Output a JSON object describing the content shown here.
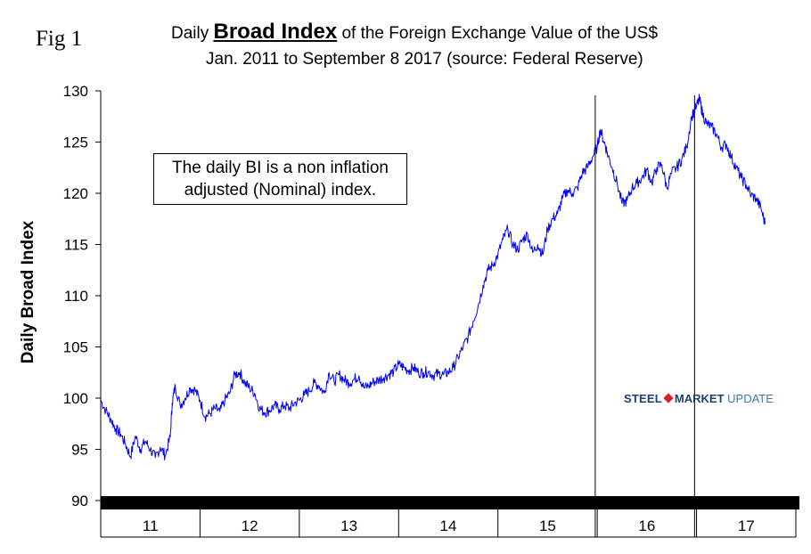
{
  "figure": {
    "label": "Fig 1",
    "title_prefix": "Daily ",
    "title_bold": "Broad Index",
    "title_suffix": " of the Foreign Exchange Value of the US$",
    "subtitle": "Jan. 2011 to September 8 2017 (source: Federal Reserve)",
    "note": "The daily BI is a non inflation adjusted (Nominal) index.",
    "logo": {
      "word1": "STEEL",
      "word2": "MARKET",
      "word3": "UPDATE"
    }
  },
  "chart_data": {
    "type": "line",
    "title": "Daily Broad Index of the Foreign Exchange Value of the US$",
    "subtitle": "Jan. 2011 to September 8 2017 (source: Federal Reserve)",
    "xlabel": "",
    "ylabel": "Daily Broad Index",
    "ylim": [
      90,
      130
    ],
    "yticks": [
      90,
      95,
      100,
      105,
      110,
      115,
      120,
      125,
      130
    ],
    "xlim": [
      2011.0,
      2018.0
    ],
    "xcategories": [
      "11",
      "12",
      "13",
      "14",
      "15",
      "16",
      "17"
    ],
    "series": [
      {
        "name": "Daily Broad Index",
        "color": "#0000ff",
        "x": [
          2011.0,
          2011.05,
          2011.1,
          2011.15,
          2011.2,
          2011.25,
          2011.3,
          2011.35,
          2011.4,
          2011.45,
          2011.5,
          2011.55,
          2011.6,
          2011.65,
          2011.7,
          2011.72,
          2011.75,
          2011.8,
          2011.85,
          2011.9,
          2011.95,
          2012.0,
          2012.05,
          2012.1,
          2012.15,
          2012.2,
          2012.25,
          2012.3,
          2012.35,
          2012.4,
          2012.45,
          2012.5,
          2012.55,
          2012.6,
          2012.65,
          2012.7,
          2012.75,
          2012.8,
          2012.85,
          2012.9,
          2012.95,
          2013.0,
          2013.05,
          2013.1,
          2013.15,
          2013.2,
          2013.25,
          2013.3,
          2013.35,
          2013.4,
          2013.45,
          2013.5,
          2013.55,
          2013.6,
          2013.65,
          2013.7,
          2013.75,
          2013.8,
          2013.85,
          2013.9,
          2013.95,
          2014.0,
          2014.05,
          2014.1,
          2014.15,
          2014.2,
          2014.25,
          2014.3,
          2014.35,
          2014.4,
          2014.45,
          2014.5,
          2014.55,
          2014.6,
          2014.65,
          2014.7,
          2014.75,
          2014.8,
          2014.85,
          2014.9,
          2014.95,
          2015.0,
          2015.05,
          2015.1,
          2015.15,
          2015.2,
          2015.25,
          2015.3,
          2015.35,
          2015.4,
          2015.45,
          2015.5,
          2015.55,
          2015.6,
          2015.65,
          2015.7,
          2015.75,
          2015.8,
          2015.85,
          2015.9,
          2015.95,
          2016.0,
          2016.03,
          2016.07,
          2016.1,
          2016.15,
          2016.2,
          2016.25,
          2016.3,
          2016.35,
          2016.4,
          2016.45,
          2016.5,
          2016.55,
          2016.6,
          2016.65,
          2016.7,
          2016.75,
          2016.8,
          2016.85,
          2016.9,
          2016.95,
          2017.0,
          2017.03,
          2017.06,
          2017.1,
          2017.15,
          2017.2,
          2017.25,
          2017.3,
          2017.35,
          2017.4,
          2017.45,
          2017.5,
          2017.55,
          2017.6,
          2017.65,
          2017.69
        ],
        "values": [
          99.8,
          98.8,
          98.0,
          97.0,
          96.5,
          95.5,
          94.3,
          96.3,
          95.0,
          95.8,
          95.0,
          94.2,
          95.2,
          94.4,
          96.2,
          99.5,
          101.2,
          99.3,
          100.0,
          101.0,
          100.8,
          99.8,
          98.2,
          98.5,
          99.0,
          98.7,
          99.8,
          100.5,
          102.3,
          102.5,
          101.5,
          101.0,
          100.5,
          99.0,
          98.6,
          98.8,
          99.3,
          98.9,
          99.3,
          99.0,
          99.5,
          99.8,
          100.3,
          100.7,
          101.5,
          101.2,
          100.5,
          102.5,
          101.6,
          102.3,
          101.8,
          101.5,
          101.8,
          102.2,
          101.0,
          101.2,
          101.6,
          101.8,
          102.0,
          102.3,
          102.6,
          103.3,
          103.0,
          102.7,
          103.0,
          102.5,
          102.5,
          102.6,
          102.2,
          102.4,
          102.3,
          102.5,
          103.0,
          104.0,
          105.0,
          106.0,
          107.5,
          109.0,
          111.0,
          112.5,
          113.0,
          114.0,
          115.5,
          116.5,
          115.0,
          114.5,
          115.5,
          116.0,
          114.2,
          115.0,
          114.0,
          116.5,
          117.5,
          118.0,
          119.5,
          120.3,
          120.0,
          120.5,
          122.0,
          122.5,
          123.5,
          124.5,
          126.2,
          125.0,
          124.0,
          122.5,
          121.0,
          119.0,
          119.3,
          120.5,
          121.0,
          121.5,
          122.3,
          121.0,
          122.5,
          122.8,
          120.5,
          122.0,
          122.5,
          123.3,
          124.5,
          127.5,
          128.5,
          129.2,
          127.8,
          126.8,
          126.5,
          125.8,
          124.5,
          124.8,
          123.5,
          122.5,
          121.5,
          120.8,
          119.8,
          119.5,
          118.5,
          117.0
        ]
      }
    ],
    "vertical_markers": [
      2015.98,
      2016.98
    ]
  }
}
